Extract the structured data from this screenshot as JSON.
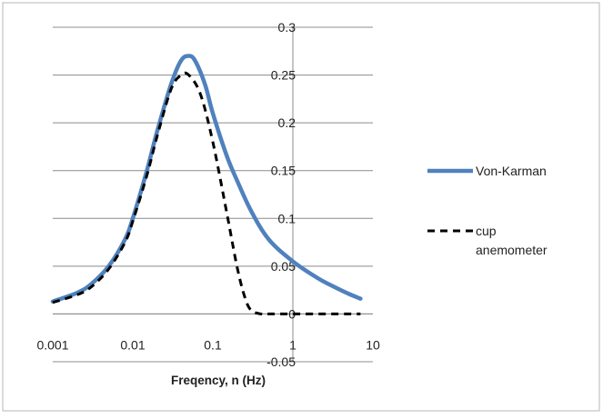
{
  "chart_data": {
    "type": "line",
    "title": "",
    "xlabel": "Freqency, n (Hz)",
    "ylabel": "",
    "x_scale": "log",
    "xlim": [
      0.001,
      10
    ],
    "ylim": [
      -0.05,
      0.3
    ],
    "x_ticks": [
      "0.001",
      "0.01",
      "0.1",
      "1",
      "10"
    ],
    "y_ticks": [
      "-0.05",
      "0",
      "0.05",
      "0.1",
      "0.15",
      "0.2",
      "0.25",
      "0.3"
    ],
    "grid": "horizontal",
    "legend_position": "right",
    "series": [
      {
        "name": "Von-Karman",
        "color": "#4F81BD",
        "style": "solid",
        "x": [
          0.001,
          0.002,
          0.003,
          0.005,
          0.008,
          0.01,
          0.015,
          0.02,
          0.03,
          0.04,
          0.05,
          0.06,
          0.08,
          0.1,
          0.15,
          0.2,
          0.3,
          0.5,
          1,
          2,
          3,
          5,
          7
        ],
        "y": [
          0.013,
          0.022,
          0.031,
          0.05,
          0.078,
          0.1,
          0.15,
          0.19,
          0.24,
          0.265,
          0.27,
          0.265,
          0.24,
          0.21,
          0.165,
          0.14,
          0.108,
          0.078,
          0.055,
          0.038,
          0.03,
          0.021,
          0.016
        ]
      },
      {
        "name": "cup anemometer",
        "color": "#000000",
        "style": "dashed",
        "x": [
          0.001,
          0.002,
          0.003,
          0.005,
          0.008,
          0.01,
          0.015,
          0.02,
          0.03,
          0.04,
          0.05,
          0.07,
          0.1,
          0.15,
          0.2,
          0.25,
          0.3,
          0.4,
          0.5,
          1,
          3,
          7
        ],
        "y": [
          0.012,
          0.02,
          0.028,
          0.047,
          0.075,
          0.097,
          0.145,
          0.185,
          0.235,
          0.25,
          0.25,
          0.23,
          0.18,
          0.105,
          0.05,
          0.018,
          0.004,
          0.0,
          0.0,
          0.0,
          0.0,
          0.0
        ]
      }
    ]
  }
}
